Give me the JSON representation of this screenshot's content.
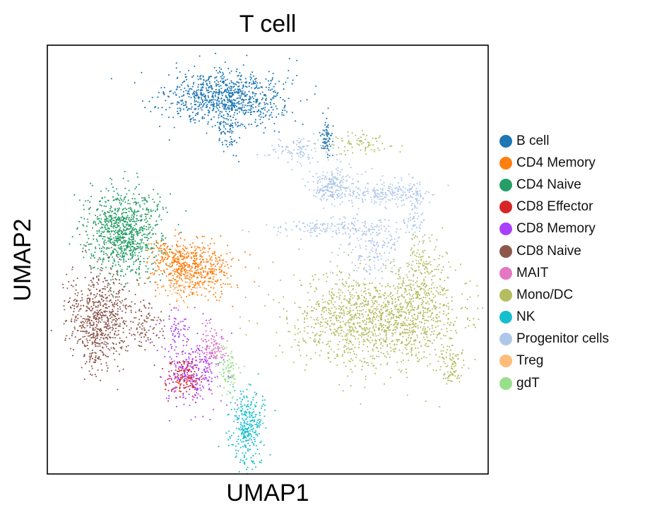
{
  "chart_data": {
    "type": "scatter",
    "title": "T cell",
    "xlabel": "UMAP1",
    "ylabel": "UMAP2",
    "xticks": [],
    "yticks": [],
    "xlim": [
      0,
      100
    ],
    "ylim": [
      0,
      100
    ],
    "grid": false,
    "legend_position": "right",
    "series": [
      {
        "name": "B cell",
        "color": "#1f77b4",
        "clusters": [
          {
            "cx": 40.5,
            "cy": 87.5,
            "sx": 6.5,
            "sy": 3.2,
            "n": 900
          },
          {
            "cx": 41.0,
            "cy": 80.0,
            "sx": 1.2,
            "sy": 2.5,
            "n": 60
          },
          {
            "cx": 63.5,
            "cy": 78.8,
            "sx": 0.7,
            "sy": 2.3,
            "n": 70
          }
        ]
      },
      {
        "name": "CD4 Memory",
        "color": "#ff7f0e",
        "clusters": [
          {
            "cx": 33.0,
            "cy": 48.0,
            "sx": 4.2,
            "sy": 3.5,
            "n": 520
          },
          {
            "cx": 27.5,
            "cy": 51.0,
            "sx": 2.5,
            "sy": 2.0,
            "n": 100
          }
        ]
      },
      {
        "name": "CD4 Naive",
        "color": "#279e68",
        "clusters": [
          {
            "cx": 17.5,
            "cy": 56.5,
            "sx": 4.2,
            "sy": 4.8,
            "n": 900
          }
        ]
      },
      {
        "name": "CD8 Effector",
        "color": "#d62728",
        "clusters": [
          {
            "cx": 31.0,
            "cy": 22.5,
            "sx": 2.2,
            "sy": 2.2,
            "n": 160
          }
        ]
      },
      {
        "name": "CD8 Memory",
        "color": "#aa40fc",
        "clusters": [
          {
            "cx": 33.0,
            "cy": 24.5,
            "sx": 3.0,
            "sy": 4.5,
            "n": 260
          },
          {
            "cx": 29.5,
            "cy": 34.0,
            "sx": 2.0,
            "sy": 2.0,
            "n": 50
          }
        ]
      },
      {
        "name": "CD8 Naive",
        "color": "#8c564b",
        "clusters": [
          {
            "cx": 12.0,
            "cy": 36.0,
            "sx": 3.6,
            "sy": 5.8,
            "n": 700
          },
          {
            "cx": 23.0,
            "cy": 35.0,
            "sx": 2.0,
            "sy": 2.5,
            "n": 80
          }
        ]
      },
      {
        "name": "MAIT",
        "color": "#e377c2",
        "clusters": [
          {
            "cx": 37.5,
            "cy": 30.0,
            "sx": 1.4,
            "sy": 2.4,
            "n": 100
          }
        ]
      },
      {
        "name": "Mono/DC",
        "color": "#b5bd61",
        "clusters": [
          {
            "cx": 75.0,
            "cy": 36.0,
            "sx": 10.0,
            "sy": 5.5,
            "n": 1400
          },
          {
            "cx": 85.0,
            "cy": 46.0,
            "sx": 2.5,
            "sy": 5.0,
            "n": 200
          },
          {
            "cx": 91.5,
            "cy": 25.0,
            "sx": 1.5,
            "sy": 2.2,
            "n": 80
          },
          {
            "cx": 71.0,
            "cy": 77.0,
            "sx": 4.0,
            "sy": 1.2,
            "n": 80
          }
        ]
      },
      {
        "name": "NK",
        "color": "#17becf",
        "clusters": [
          {
            "cx": 45.5,
            "cy": 11.0,
            "sx": 2.0,
            "sy": 4.8,
            "n": 320
          }
        ]
      },
      {
        "name": "Progenitor cells",
        "color": "#aec7e8",
        "clusters": [
          {
            "cx": 64.0,
            "cy": 67.0,
            "sx": 2.5,
            "sy": 2.0,
            "n": 200
          },
          {
            "cx": 76.0,
            "cy": 65.5,
            "sx": 5.0,
            "sy": 1.5,
            "n": 220
          },
          {
            "cx": 65.0,
            "cy": 57.5,
            "sx": 7.0,
            "sy": 1.0,
            "n": 180
          },
          {
            "cx": 57.0,
            "cy": 75.5,
            "sx": 4.0,
            "sy": 1.8,
            "n": 100
          },
          {
            "cx": 74.0,
            "cy": 52.0,
            "sx": 3.5,
            "sy": 3.0,
            "n": 150
          },
          {
            "cx": 83.5,
            "cy": 61.0,
            "sx": 1.0,
            "sy": 3.5,
            "n": 70
          }
        ]
      },
      {
        "name": "Treg",
        "color": "#ffbb78",
        "clusters": [
          {
            "cx": 31.5,
            "cy": 43.0,
            "sx": 2.0,
            "sy": 1.5,
            "n": 40
          }
        ]
      },
      {
        "name": "gdT",
        "color": "#98df8a",
        "clusters": [
          {
            "cx": 41.0,
            "cy": 24.0,
            "sx": 1.2,
            "sy": 3.0,
            "n": 90
          }
        ]
      }
    ]
  }
}
